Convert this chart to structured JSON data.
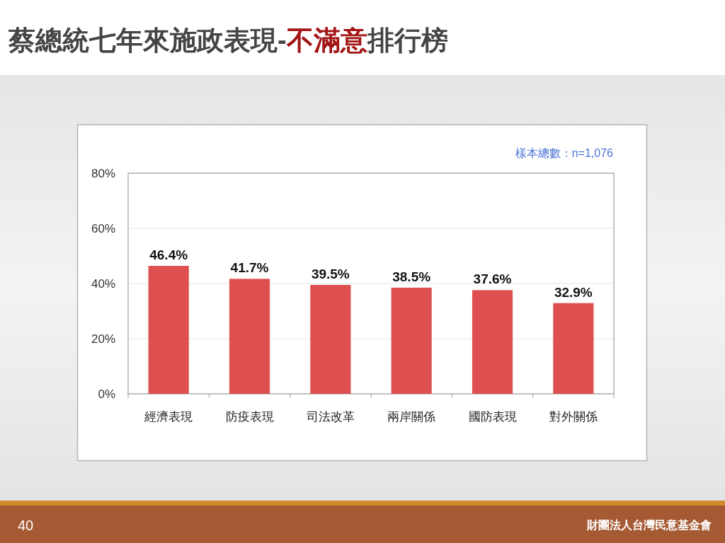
{
  "chart_data": {
    "type": "bar",
    "title": "蔡總統七年來施政表現-不滿意排行榜",
    "categories": [
      "經濟表現",
      "防疫表現",
      "司法改革",
      "兩岸關係",
      "國防表現",
      "對外關係"
    ],
    "values": [
      46.4,
      41.7,
      39.5,
      38.5,
      37.6,
      32.9
    ],
    "value_labels": [
      "46.4%",
      "41.7%",
      "39.5%",
      "38.5%",
      "37.6%",
      "32.9%"
    ],
    "color": "#de5050",
    "ylim": [
      0,
      80
    ],
    "yticks": [
      {
        "value": 0,
        "label": "0%"
      },
      {
        "value": 20,
        "label": "20%"
      },
      {
        "value": 40,
        "label": "40%"
      },
      {
        "value": 60,
        "label": "60%"
      },
      {
        "value": 80,
        "label": "80%"
      }
    ],
    "grid": "y",
    "annotations": [
      "樣本總數：n=1,076",
      "40",
      "財團法人台灣民意基金會"
    ]
  }
}
